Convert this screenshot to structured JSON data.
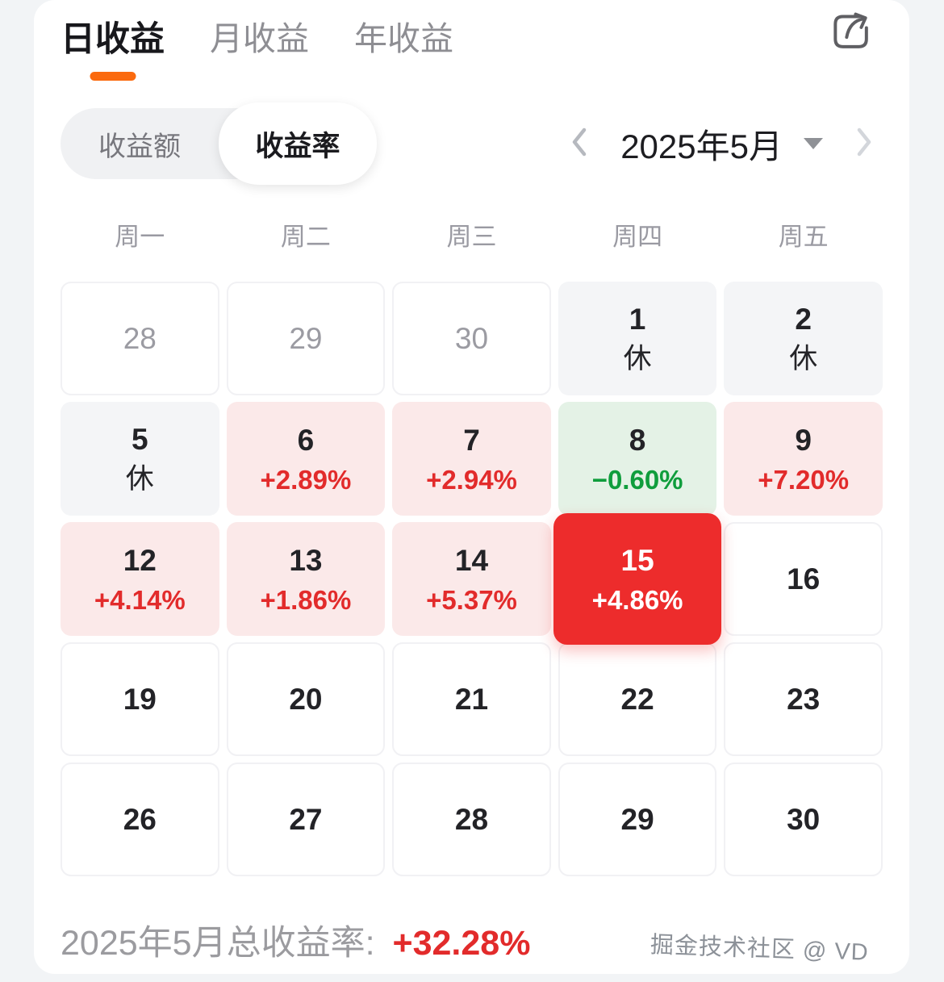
{
  "colors": {
    "accent_orange": "#FB6A0E",
    "gain_red": "#E22B2B",
    "gain_bg": "#FBE9E9",
    "loss_green": "#0F9D3C",
    "loss_bg": "#E4F2E6",
    "selected_bg": "#ED2C2C",
    "rest_bg": "#F4F5F7"
  },
  "header": {
    "tabs": [
      {
        "label": "日收益",
        "active": true
      },
      {
        "label": "月收益",
        "active": false
      },
      {
        "label": "年收益",
        "active": false
      }
    ]
  },
  "controls": {
    "metric_toggle": [
      {
        "label": "收益额",
        "active": false
      },
      {
        "label": "收益率",
        "active": true
      }
    ],
    "month_label": "2025年5月"
  },
  "calendar": {
    "weekdays": [
      "周一",
      "周二",
      "周三",
      "周四",
      "周五"
    ],
    "cells": [
      {
        "day": "28",
        "type": "outmonth"
      },
      {
        "day": "29",
        "type": "outmonth"
      },
      {
        "day": "30",
        "type": "outmonth"
      },
      {
        "day": "1",
        "type": "rest",
        "note": "休"
      },
      {
        "day": "2",
        "type": "rest",
        "note": "休"
      },
      {
        "day": "5",
        "type": "rest",
        "note": "休"
      },
      {
        "day": "6",
        "type": "gain",
        "pct": "+2.89%"
      },
      {
        "day": "7",
        "type": "gain",
        "pct": "+2.94%"
      },
      {
        "day": "8",
        "type": "loss",
        "pct": "−0.60%"
      },
      {
        "day": "9",
        "type": "gain",
        "pct": "+7.20%"
      },
      {
        "day": "12",
        "type": "gain",
        "pct": "+4.14%"
      },
      {
        "day": "13",
        "type": "gain",
        "pct": "+1.86%"
      },
      {
        "day": "14",
        "type": "gain",
        "pct": "+5.37%"
      },
      {
        "day": "15",
        "type": "selected",
        "pct": "+4.86%"
      },
      {
        "day": "16",
        "type": "plain"
      },
      {
        "day": "19",
        "type": "plain"
      },
      {
        "day": "20",
        "type": "plain"
      },
      {
        "day": "21",
        "type": "plain"
      },
      {
        "day": "22",
        "type": "plain"
      },
      {
        "day": "23",
        "type": "plain"
      },
      {
        "day": "26",
        "type": "plain"
      },
      {
        "day": "27",
        "type": "plain"
      },
      {
        "day": "28",
        "type": "plain"
      },
      {
        "day": "29",
        "type": "plain"
      },
      {
        "day": "30",
        "type": "plain"
      }
    ]
  },
  "summary": {
    "label": "2025年5月总收益率:",
    "value": "+32.28%"
  },
  "watermark": "掘金技术社区 @ VD"
}
